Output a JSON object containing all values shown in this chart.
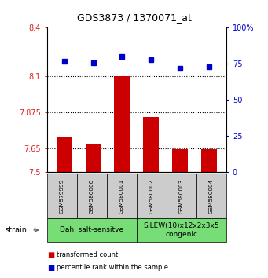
{
  "title": "GDS3873 / 1370071_at",
  "samples": [
    "GSM579999",
    "GSM580000",
    "GSM580001",
    "GSM580002",
    "GSM580003",
    "GSM580004"
  ],
  "bar_values": [
    7.72,
    7.675,
    8.1,
    7.845,
    7.645,
    7.645
  ],
  "bar_base": 7.5,
  "dot_values": [
    77,
    76,
    80,
    78,
    72,
    73
  ],
  "ylim_left": [
    7.5,
    8.4
  ],
  "ylim_right": [
    0,
    100
  ],
  "yticks_left": [
    7.5,
    7.65,
    7.875,
    8.1,
    8.4
  ],
  "ytick_labels_left": [
    "7.5",
    "7.65",
    "7.875",
    "8.1",
    "8.4"
  ],
  "yticks_right": [
    0,
    25,
    50,
    75,
    100
  ],
  "ytick_labels_right": [
    "0",
    "25",
    "50",
    "75",
    "100%"
  ],
  "hlines": [
    7.65,
    7.875,
    8.1
  ],
  "bar_color": "#cc0000",
  "dot_color": "#0000cc",
  "group1_label": "Dahl salt-sensitve",
  "group2_label": "S.LEW(10)x12x2x3x5\ncongenic",
  "group1_count": 3,
  "group2_count": 3,
  "group_bg_color": "#77dd77",
  "sample_bg_color": "#cccccc",
  "legend_bar_label": "transformed count",
  "legend_dot_label": "percentile rank within the sample",
  "strain_label": "strain",
  "ylabel_left_color": "#dd2222",
  "ylabel_right_color": "#0000cc",
  "title_fontsize": 9
}
